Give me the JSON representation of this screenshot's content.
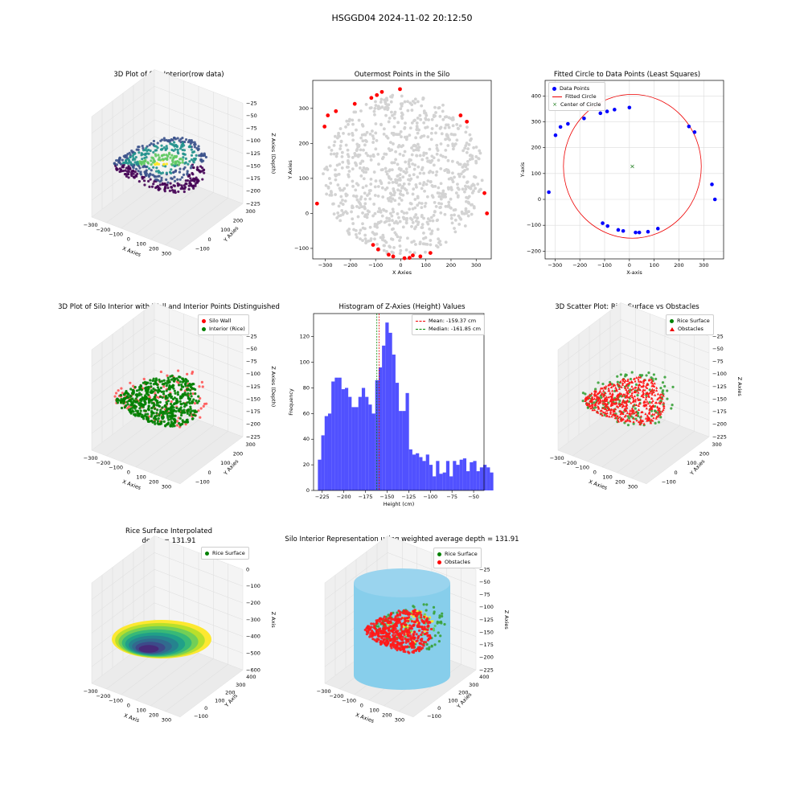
{
  "suptitle": "HSGGD04 2024-11-02 20:12:50",
  "colors": {
    "viridis": [
      "#440154",
      "#3b528b",
      "#21918c",
      "#5ec962",
      "#fde725"
    ],
    "wall": "#ff0000",
    "rice": "#008000",
    "gray": "#d3d3d3",
    "blue": "#0000ff",
    "sky": "#87ceeb"
  },
  "chart_data": [
    {
      "id": "p1",
      "type": "scatter3d",
      "title": "3D Plot of Silo Interior(row data)",
      "xlabel": "X Axies",
      "ylabel": "Y Axies",
      "zlabel": "Z Axies (Depth)",
      "xticks": [
        "−300",
        "−200",
        "−100",
        "0",
        "100",
        "200",
        "300"
      ],
      "yticks": [
        "300",
        "200",
        "100",
        "0",
        "−100"
      ],
      "zticks": [
        "−25",
        "−50",
        "−75",
        "−100",
        "−125",
        "−150",
        "−175",
        "−200",
        "−225"
      ]
    },
    {
      "id": "p2",
      "type": "scatter",
      "title": "Outermost Points in the Silo",
      "xlabel": "X Axies",
      "ylabel": "Y Axies",
      "xlim": [
        -350,
        360
      ],
      "ylim": [
        -130,
        380
      ],
      "xticks": [
        -300,
        -200,
        -100,
        0,
        100,
        200,
        300
      ],
      "yticks": [
        -100,
        0,
        100,
        200,
        300
      ],
      "outermost": [
        [
          -333,
          28
        ],
        [
          -303,
          248
        ],
        [
          -290,
          280
        ],
        [
          -258,
          292
        ],
        [
          -183,
          313
        ],
        [
          -117,
          330
        ],
        [
          -95,
          338
        ],
        [
          -75,
          347
        ],
        [
          -3,
          355
        ],
        [
          -110,
          -90
        ],
        [
          -90,
          -103
        ],
        [
          -48,
          -118
        ],
        [
          -30,
          -123
        ],
        [
          15,
          -128
        ],
        [
          35,
          -127
        ],
        [
          48,
          -120
        ],
        [
          78,
          -123
        ],
        [
          118,
          -113
        ],
        [
          238,
          280
        ],
        [
          263,
          262
        ],
        [
          333,
          58
        ],
        [
          343,
          0
        ]
      ]
    },
    {
      "id": "p3",
      "type": "scatter",
      "title": "Fitted Circle to Data Points (Least Squares)",
      "xlabel": "X-axis",
      "ylabel": "Y-axis",
      "xlim": [
        -340,
        380
      ],
      "ylim": [
        -230,
        460
      ],
      "xticks": [
        -300,
        -200,
        -100,
        0,
        100,
        200,
        300
      ],
      "yticks": [
        -200,
        -100,
        0,
        100,
        200,
        300,
        400
      ],
      "legend": [
        "Data Points",
        "Fitted Circle",
        "Center of Circle"
      ],
      "points": [
        [
          -325,
          28
        ],
        [
          -298,
          248
        ],
        [
          -278,
          280
        ],
        [
          -248,
          292
        ],
        [
          -183,
          313
        ],
        [
          -117,
          333
        ],
        [
          -90,
          340
        ],
        [
          -60,
          347
        ],
        [
          0,
          355
        ],
        [
          -108,
          -92
        ],
        [
          -88,
          -103
        ],
        [
          -45,
          -118
        ],
        [
          -25,
          -122
        ],
        [
          25,
          -128
        ],
        [
          40,
          -128
        ],
        [
          75,
          -125
        ],
        [
          115,
          -113
        ],
        [
          240,
          282
        ],
        [
          263,
          260
        ],
        [
          333,
          58
        ],
        [
          345,
          0
        ]
      ],
      "center": [
        12,
        128
      ],
      "radius": 278
    },
    {
      "id": "p4",
      "type": "scatter3d",
      "title": "3D Plot of Silo Interior with Wall and Interior Points Distinguished",
      "xlabel": "X Axies",
      "ylabel": "Y Axies",
      "zlabel": "Z Axies (Depth)",
      "legend": [
        "Silo Wall",
        "Interior (Rice)"
      ],
      "xticks": [
        "−300",
        "−200",
        "−100",
        "0",
        "100",
        "200",
        "300"
      ],
      "yticks": [
        "300",
        "200",
        "100",
        "0",
        "−100"
      ],
      "zticks": [
        "−25",
        "−50",
        "−75",
        "−100",
        "−125",
        "−150",
        "−175",
        "−200",
        "−225"
      ]
    },
    {
      "id": "p5",
      "type": "bar",
      "title": "Histogram of Z-Axies (Height) Values",
      "xlabel": "Height (cm)",
      "ylabel": "Frequency",
      "xlim": [
        -235,
        -38
      ],
      "ylim": [
        0,
        138
      ],
      "xticks": [
        -225,
        -200,
        -175,
        -150,
        -125,
        -100,
        -75,
        -50
      ],
      "yticks": [
        0,
        20,
        40,
        60,
        80,
        100,
        120
      ],
      "bin_start": -230,
      "bin_width": 3.9,
      "values": [
        24,
        43,
        58,
        60,
        85,
        88,
        88,
        79,
        80,
        73,
        65,
        65,
        73,
        80,
        73,
        67,
        60,
        86,
        96,
        113,
        131,
        123,
        106,
        84,
        62,
        62,
        76,
        32,
        28,
        29,
        26,
        23,
        28,
        20,
        11,
        23,
        13,
        14,
        23,
        11,
        23,
        20,
        24,
        25,
        15,
        22,
        23,
        15,
        18,
        20,
        18,
        14
      ],
      "mean": -159.37,
      "median": -161.85,
      "legend": [
        "Mean: -159.37 cm",
        "Median: -161.85 cm"
      ]
    },
    {
      "id": "p6",
      "type": "scatter3d",
      "title": "3D Scatter Plot: Rice Surface vs Obstacles",
      "xlabel": "X Axies",
      "ylabel": "Y Axies",
      "zlabel": "Z Axies",
      "legend": [
        "Rice Surface",
        "Obstacles"
      ],
      "xticks": [
        "−300",
        "−200",
        "−100",
        "0",
        "100",
        "200",
        "300"
      ],
      "yticks": [
        "300",
        "200",
        "100",
        "0",
        "−100"
      ],
      "zticks": [
        "−25",
        "−50",
        "−75",
        "−100",
        "−125",
        "−150",
        "−175",
        "−200",
        "−225"
      ]
    },
    {
      "id": "p7",
      "type": "surface3d",
      "title": "Rice Surface Interpolated\ndepth = 131.91",
      "xlabel": "X Axis",
      "ylabel": "Y Axis",
      "zlabel": "Z Axis",
      "legend": [
        "Rice Surface"
      ],
      "xticks": [
        "−300",
        "−200",
        "−100",
        "0",
        "100",
        "200",
        "300"
      ],
      "yticks": [
        "400",
        "300",
        "200",
        "100",
        "0",
        "−100"
      ],
      "zticks": [
        "0",
        "−100",
        "−200",
        "−300",
        "−400",
        "−500",
        "−600"
      ]
    },
    {
      "id": "p8",
      "type": "scatter3d",
      "title": "Silo Interior Representation using weighted average depth = 131.91",
      "xlabel": "X Axies",
      "ylabel": "Y Axies",
      "zlabel": "Z Axies",
      "legend": [
        "Rice Surface",
        "Obstacles"
      ],
      "xticks": [
        "−300",
        "−200",
        "−100",
        "0",
        "100",
        "200",
        "300"
      ],
      "yticks": [
        "400",
        "300",
        "200",
        "100",
        "0",
        "−100"
      ],
      "zticks": [
        "−25",
        "−50",
        "−75",
        "−100",
        "−125",
        "−150",
        "−175",
        "−200",
        "−225"
      ]
    }
  ]
}
